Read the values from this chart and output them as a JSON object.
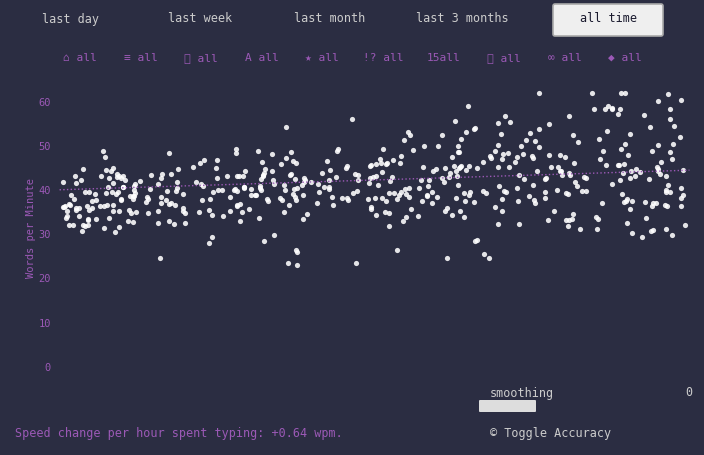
{
  "background_color": "#2b2d42",
  "plot_bg_color": "#2b2d42",
  "scatter_color": "#ffffff",
  "trend_color": "#9b59b6",
  "ylabel": "Words per Minute",
  "yticks": [
    0,
    10,
    20,
    30,
    40,
    50,
    60
  ],
  "ylim": [
    -3,
    66
  ],
  "xlim": [
    0,
    700
  ],
  "nav_items": [
    "last day",
    "last week",
    "last month",
    "last 3 months",
    "all time"
  ],
  "nav_active": "all time",
  "smoothing_label": "smoothing",
  "smoothing_value": "0",
  "speed_change_text": "Speed change per hour spent typing: +0.64 wpm.",
  "toggle_accuracy_text": "© Toggle Accuracy",
  "nav_text_color": "#cccccc",
  "nav_active_text": "#1a1a2e",
  "filter_color": "#9b59b6",
  "annotation_color": "#9b59b6",
  "tick_color": "#9b59b6",
  "bottom_text_color": "#9b59b6",
  "font_family": "monospace",
  "seed": 42,
  "n_points": 500,
  "trend_y_start": 40.0,
  "trend_y_end": 44.5,
  "nav_x_positions": [
    70,
    200,
    330,
    462,
    608
  ],
  "nav_widths": [
    115,
    120,
    120,
    130,
    110
  ]
}
